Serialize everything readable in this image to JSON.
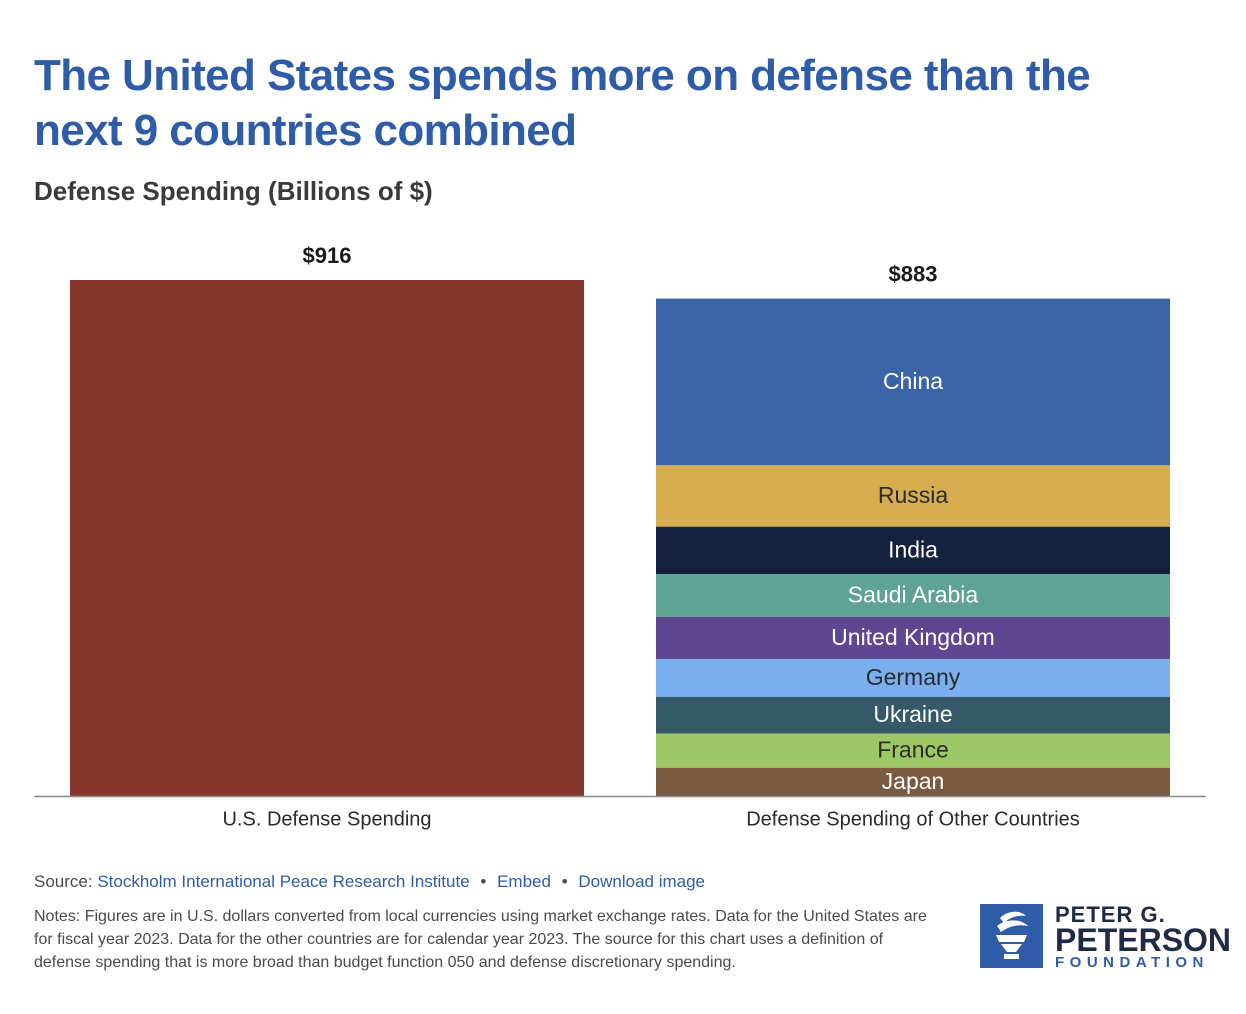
{
  "title": "The United States spends more on defense than the next 9 countries combined",
  "subtitle": "Defense Spending (Billions of $)",
  "colors": {
    "title": "#2f5ca8",
    "us_bar": "#87372d",
    "link": "#2f5ca8"
  },
  "chart_data": {
    "type": "bar",
    "stacked": true,
    "categories": [
      "U.S. Defense Spending",
      "Defense Spending of Other Countries"
    ],
    "totals": [
      916,
      883
    ],
    "total_labels": [
      "$916",
      "$883"
    ],
    "ylim": [
      0,
      916
    ],
    "grid": false,
    "legend": "none (segment labels inside bars)",
    "us_series": {
      "value": 916,
      "color": "#87372d"
    },
    "series": [
      {
        "name": "China",
        "value": 296,
        "color": "#3b63a8",
        "text_color": "#ffffff"
      },
      {
        "name": "Russia",
        "value": 109,
        "color": "#d6ae50",
        "text_color": "#2b2b2b"
      },
      {
        "name": "India",
        "value": 84,
        "color": "#15223f",
        "text_color": "#ffffff"
      },
      {
        "name": "Saudi Arabia",
        "value": 76,
        "color": "#5fa395",
        "text_color": "#ffffff"
      },
      {
        "name": "United Kingdom",
        "value": 75,
        "color": "#5f4690",
        "text_color": "#ffffff"
      },
      {
        "name": "Germany",
        "value": 67,
        "color": "#7aaff0",
        "text_color": "#2b2b2b"
      },
      {
        "name": "Ukraine",
        "value": 65,
        "color": "#345968",
        "text_color": "#ffffff"
      },
      {
        "name": "France",
        "value": 61,
        "color": "#9ec765",
        "text_color": "#2b2b2b"
      },
      {
        "name": "Japan",
        "value": 50,
        "color": "#7b5a42",
        "text_color": "#ffffff"
      }
    ]
  },
  "source": {
    "prefix": "Source:",
    "link_text": "Stockholm International Peace Research Institute",
    "embed": "Embed",
    "download": "Download image",
    "separator": "•"
  },
  "notes": "Notes: Figures are in U.S. dollars converted from local currencies using market exchange rates. Data for the United States are for fiscal year 2023. Data for the other countries are for calendar year 2023. The source for this chart uses a definition of defense spending that is more broad than budget function 050 and defense discretionary spending.",
  "logo": {
    "line1": "PETER G.",
    "line2": "PETERSON",
    "line3": "FOUNDATION"
  }
}
